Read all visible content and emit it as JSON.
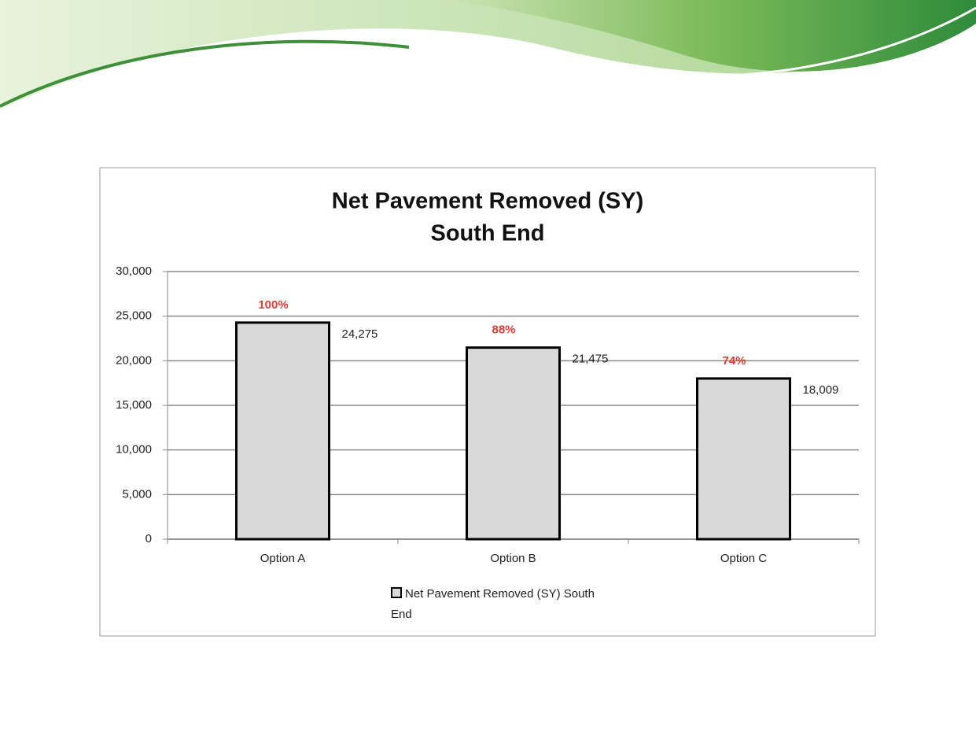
{
  "chart_data": {
    "type": "bar",
    "title": "Net Pavement Removed (SY)",
    "subtitle": "South End",
    "categories": [
      "Option A",
      "Option B",
      "Option C"
    ],
    "series": [
      {
        "name": "Net Pavement Removed (SY) South End",
        "color": "#d9d9d9",
        "values": [
          24275,
          21475,
          18009
        ],
        "value_labels": [
          "24,275",
          "21,475",
          "18,009"
        ]
      }
    ],
    "annotations": [
      "100%",
      "88%",
      "74%"
    ],
    "annotation_color": "#e03c31",
    "ylim": [
      0,
      30000
    ],
    "yticks": [
      0,
      {
        "value": 5000,
        "label": "5,000"
      },
      {
        "value": 10000,
        "label": "10,000"
      },
      {
        "value": 15000,
        "label": "15,000"
      },
      {
        "value": 20000,
        "label": "20,000"
      },
      {
        "value": 25000,
        "label": "25,000"
      },
      {
        "value": 30000,
        "label": "30,000"
      }
    ],
    "grid": true
  }
}
